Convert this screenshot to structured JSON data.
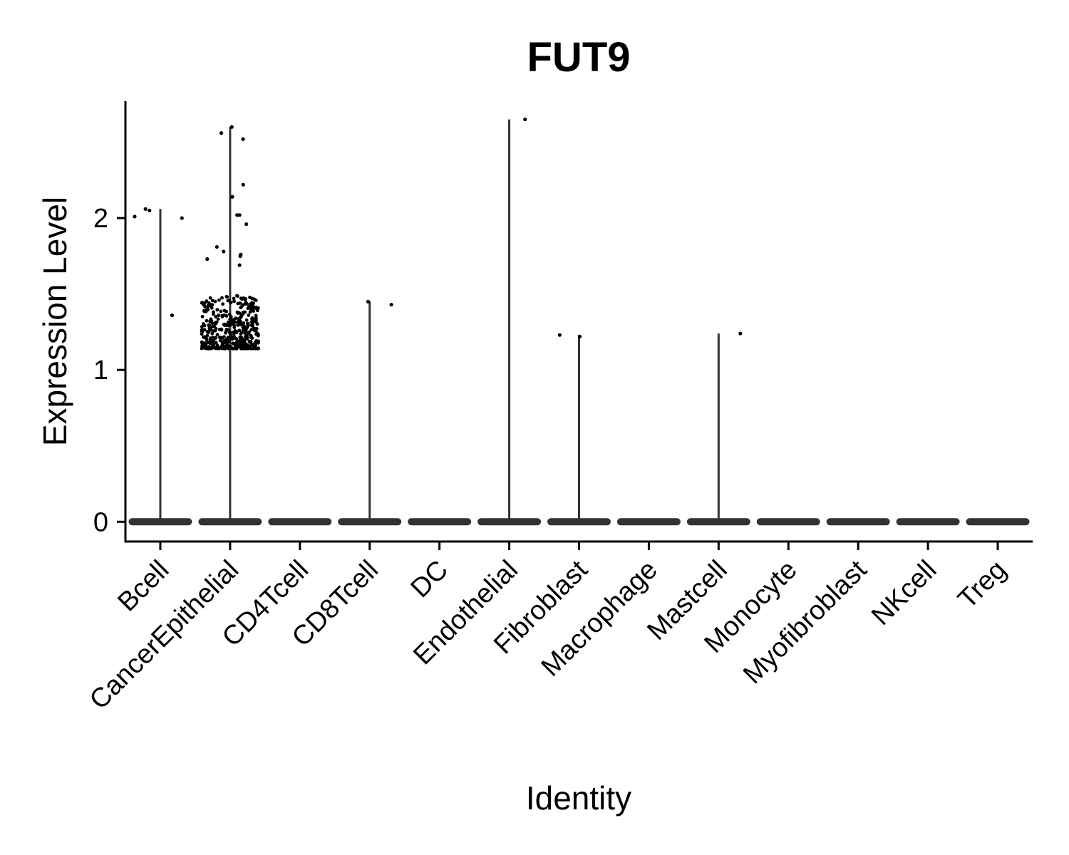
{
  "chart_data": {
    "type": "violin",
    "title": "FUT9",
    "xlabel": "Identity",
    "ylabel": "Expression Level",
    "ylim": [
      -0.13,
      2.77
    ],
    "yticks": [
      0,
      1,
      2
    ],
    "grid": false,
    "categories": [
      "Bcell",
      "CancerEpithelial",
      "CD4Tcell",
      "CD8Tcell",
      "DC",
      "Endothelial",
      "Fibroblast",
      "Macrophage",
      "Mastcell",
      "Monocyte",
      "Myofibroblast",
      "NKcell",
      "Treg"
    ],
    "max_values": [
      2.06,
      2.6,
      0,
      1.45,
      0,
      2.65,
      1.23,
      0,
      1.24,
      0,
      0,
      0,
      0
    ],
    "points": [
      {
        "category": "Bcell",
        "values": [
          2.01,
          2.0,
          2.05,
          2.06,
          1.36
        ]
      },
      {
        "category": "CancerEpithelial",
        "values": [
          2.6,
          2.56,
          2.52,
          2.22,
          2.14,
          2.02,
          2.02,
          1.96,
          1.81,
          1.78,
          1.76,
          1.75,
          1.73,
          1.69
        ]
      },
      {
        "category": "CD8Tcell",
        "values": [
          1.45,
          1.43
        ]
      },
      {
        "category": "Endothelial",
        "values": [
          2.65
        ]
      },
      {
        "category": "Fibroblast",
        "values": [
          1.23,
          1.22
        ]
      },
      {
        "category": "Mastcell",
        "values": [
          1.24
        ]
      }
    ],
    "cluster": {
      "category": "CancerEpithelial",
      "range": [
        1.14,
        1.49
      ]
    }
  }
}
